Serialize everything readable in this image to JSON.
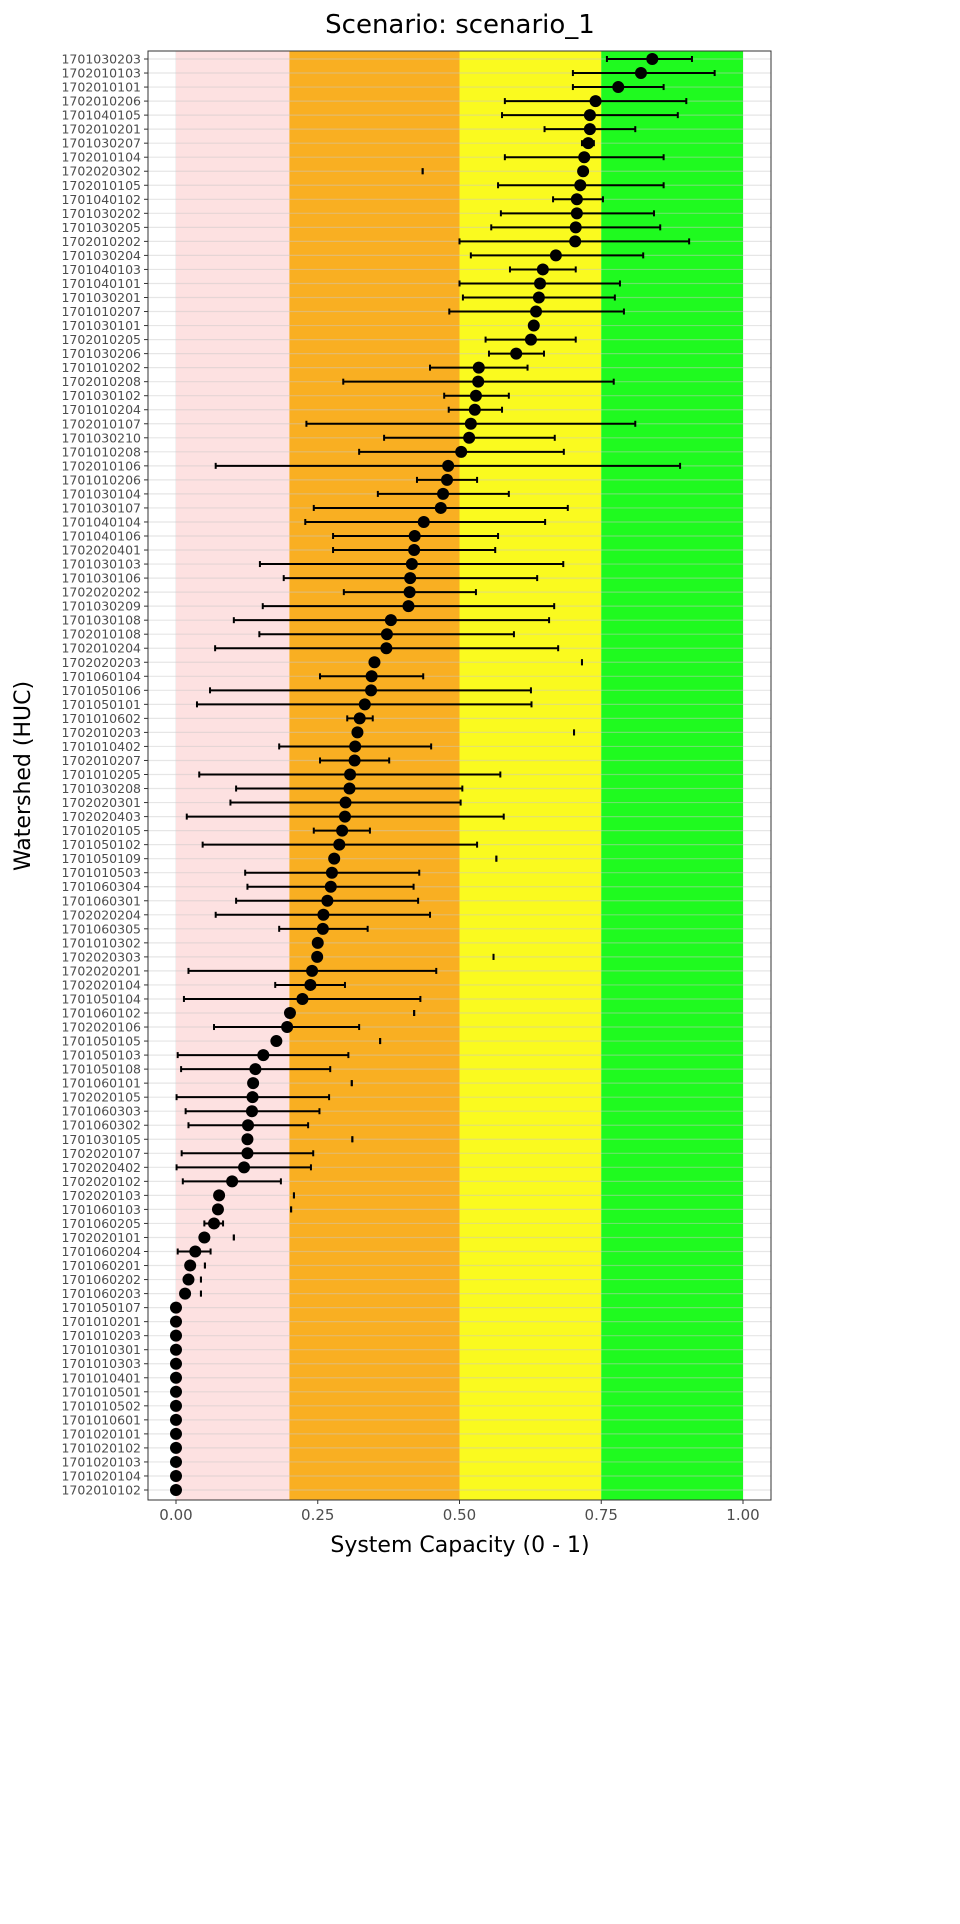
{
  "chart_data": {
    "type": "scatter",
    "subtype": "point-with-errorbars",
    "title": "Scenario: scenario_1",
    "xlabel": "System Capacity (0 - 1)",
    "ylabel": "Watershed (HUC)",
    "xlim": [
      0,
      1
    ],
    "xticks": [
      "0.00",
      "0.25",
      "0.50",
      "0.75",
      "1.00"
    ],
    "grid": true,
    "bands": [
      {
        "from": 0,
        "to": 0.2,
        "color": "#FDE1E1"
      },
      {
        "from": 0.2,
        "to": 0.5,
        "color": "#F9AF22"
      },
      {
        "from": 0.5,
        "to": 0.75,
        "color": "#FAFA1F"
      },
      {
        "from": 0.75,
        "to": 1.0,
        "color": "#1FFA1F"
      }
    ],
    "point_color": "#000000",
    "rows": [
      {
        "huc": "1701030203",
        "value": 0.84,
        "lower": 0.76,
        "upper": 0.91
      },
      {
        "huc": "1702010103",
        "value": 0.82,
        "lower": 0.7,
        "upper": 0.95
      },
      {
        "huc": "1702010101",
        "value": 0.78,
        "lower": 0.7,
        "upper": 0.86
      },
      {
        "huc": "1702010206",
        "value": 0.74,
        "lower": 0.58,
        "upper": 0.9
      },
      {
        "huc": "1701040105",
        "value": 0.73,
        "lower": 0.575,
        "upper": 0.885
      },
      {
        "huc": "1702010201",
        "value": 0.73,
        "lower": 0.65,
        "upper": 0.81
      },
      {
        "huc": "1701030207",
        "value": 0.727,
        "lower": 0.716,
        "upper": 0.737
      },
      {
        "huc": "1702010104",
        "value": 0.72,
        "lower": 0.58,
        "upper": 0.86
      },
      {
        "huc": "1702020302",
        "value": 0.718,
        "lower": 0.435,
        "upper": 0.435
      },
      {
        "huc": "1702010105",
        "value": 0.713,
        "lower": 0.568,
        "upper": 0.86
      },
      {
        "huc": "1701040102",
        "value": 0.707,
        "lower": 0.665,
        "upper": 0.753
      },
      {
        "huc": "1701030202",
        "value": 0.707,
        "lower": 0.573,
        "upper": 0.843
      },
      {
        "huc": "1701030205",
        "value": 0.705,
        "lower": 0.556,
        "upper": 0.854
      },
      {
        "huc": "1702010202",
        "value": 0.704,
        "lower": 0.5,
        "upper": 0.905
      },
      {
        "huc": "1701030204",
        "value": 0.67,
        "lower": 0.52,
        "upper": 0.824
      },
      {
        "huc": "1701040103",
        "value": 0.647,
        "lower": 0.589,
        "upper": 0.705
      },
      {
        "huc": "1701040101",
        "value": 0.642,
        "lower": 0.5,
        "upper": 0.783
      },
      {
        "huc": "1701030201",
        "value": 0.64,
        "lower": 0.506,
        "upper": 0.774
      },
      {
        "huc": "1701010207",
        "value": 0.635,
        "lower": 0.482,
        "upper": 0.79
      },
      {
        "huc": "1701030101",
        "value": 0.631,
        "lower": 0.631,
        "upper": 0.631
      },
      {
        "huc": "1702010205",
        "value": 0.626,
        "lower": 0.546,
        "upper": 0.705
      },
      {
        "huc": "1701030206",
        "value": 0.6,
        "lower": 0.552,
        "upper": 0.649
      },
      {
        "huc": "1701010202",
        "value": 0.534,
        "lower": 0.448,
        "upper": 0.62
      },
      {
        "huc": "1702010208",
        "value": 0.533,
        "lower": 0.295,
        "upper": 0.772
      },
      {
        "huc": "1701030102",
        "value": 0.529,
        "lower": 0.473,
        "upper": 0.587
      },
      {
        "huc": "1701010204",
        "value": 0.527,
        "lower": 0.481,
        "upper": 0.575
      },
      {
        "huc": "1702010107",
        "value": 0.52,
        "lower": 0.23,
        "upper": 0.81
      },
      {
        "huc": "1701030210",
        "value": 0.517,
        "lower": 0.367,
        "upper": 0.668
      },
      {
        "huc": "1701010208",
        "value": 0.503,
        "lower": 0.323,
        "upper": 0.684
      },
      {
        "huc": "1702010106",
        "value": 0.48,
        "lower": 0.07,
        "upper": 0.889
      },
      {
        "huc": "1701010206",
        "value": 0.478,
        "lower": 0.425,
        "upper": 0.531
      },
      {
        "huc": "1701030104",
        "value": 0.471,
        "lower": 0.356,
        "upper": 0.587
      },
      {
        "huc": "1701030107",
        "value": 0.467,
        "lower": 0.243,
        "upper": 0.691
      },
      {
        "huc": "1701040104",
        "value": 0.437,
        "lower": 0.228,
        "upper": 0.651
      },
      {
        "huc": "1701040106",
        "value": 0.421,
        "lower": 0.277,
        "upper": 0.568
      },
      {
        "huc": "1702020401",
        "value": 0.42,
        "lower": 0.277,
        "upper": 0.563
      },
      {
        "huc": "1701030103",
        "value": 0.416,
        "lower": 0.148,
        "upper": 0.683
      },
      {
        "huc": "1701030106",
        "value": 0.413,
        "lower": 0.19,
        "upper": 0.637
      },
      {
        "huc": "1702020202",
        "value": 0.412,
        "lower": 0.296,
        "upper": 0.529
      },
      {
        "huc": "1701030209",
        "value": 0.41,
        "lower": 0.153,
        "upper": 0.667
      },
      {
        "huc": "1701030108",
        "value": 0.379,
        "lower": 0.102,
        "upper": 0.658
      },
      {
        "huc": "1702010108",
        "value": 0.372,
        "lower": 0.147,
        "upper": 0.596
      },
      {
        "huc": "1702010204",
        "value": 0.371,
        "lower": 0.069,
        "upper": 0.674
      },
      {
        "huc": "1702020203",
        "value": 0.35,
        "lower": 0.716,
        "upper": 0.716
      },
      {
        "huc": "1701060104",
        "value": 0.345,
        "lower": 0.254,
        "upper": 0.436
      },
      {
        "huc": "1701050106",
        "value": 0.344,
        "lower": 0.06,
        "upper": 0.626
      },
      {
        "huc": "1701050101",
        "value": 0.333,
        "lower": 0.037,
        "upper": 0.627
      },
      {
        "huc": "1701010602",
        "value": 0.324,
        "lower": 0.302,
        "upper": 0.347
      },
      {
        "huc": "1702010203",
        "value": 0.32,
        "lower": 0.702,
        "upper": 0.702
      },
      {
        "huc": "1701010402",
        "value": 0.316,
        "lower": 0.182,
        "upper": 0.45
      },
      {
        "huc": "1702010207",
        "value": 0.315,
        "lower": 0.254,
        "upper": 0.376
      },
      {
        "huc": "1701010205",
        "value": 0.307,
        "lower": 0.041,
        "upper": 0.572
      },
      {
        "huc": "1701030208",
        "value": 0.306,
        "lower": 0.106,
        "upper": 0.505
      },
      {
        "huc": "1702020301",
        "value": 0.299,
        "lower": 0.096,
        "upper": 0.502
      },
      {
        "huc": "1702020403",
        "value": 0.298,
        "lower": 0.019,
        "upper": 0.578
      },
      {
        "huc": "1701020105",
        "value": 0.293,
        "lower": 0.243,
        "upper": 0.342
      },
      {
        "huc": "1701050102",
        "value": 0.288,
        "lower": 0.047,
        "upper": 0.531
      },
      {
        "huc": "1701050109",
        "value": 0.279,
        "lower": 0.565,
        "upper": 0.565
      },
      {
        "huc": "1701010503",
        "value": 0.275,
        "lower": 0.122,
        "upper": 0.429
      },
      {
        "huc": "1701060304",
        "value": 0.273,
        "lower": 0.126,
        "upper": 0.419
      },
      {
        "huc": "1701060301",
        "value": 0.267,
        "lower": 0.106,
        "upper": 0.427
      },
      {
        "huc": "1702020204",
        "value": 0.26,
        "lower": 0.07,
        "upper": 0.448
      },
      {
        "huc": "1701060305",
        "value": 0.259,
        "lower": 0.182,
        "upper": 0.338
      },
      {
        "huc": "1701010302",
        "value": 0.25,
        "lower": 0.25,
        "upper": 0.25
      },
      {
        "huc": "1702020303",
        "value": 0.249,
        "lower": 0.56,
        "upper": 0.56
      },
      {
        "huc": "1702020201",
        "value": 0.24,
        "lower": 0.022,
        "upper": 0.459
      },
      {
        "huc": "1702020104",
        "value": 0.237,
        "lower": 0.175,
        "upper": 0.298
      },
      {
        "huc": "1701050104",
        "value": 0.223,
        "lower": 0.014,
        "upper": 0.431
      },
      {
        "huc": "1701060102",
        "value": 0.201,
        "lower": 0.42,
        "upper": 0.42
      },
      {
        "huc": "1702020106",
        "value": 0.196,
        "lower": 0.067,
        "upper": 0.323
      },
      {
        "huc": "1701050105",
        "value": 0.177,
        "lower": 0.36,
        "upper": 0.36
      },
      {
        "huc": "1701050103",
        "value": 0.154,
        "lower": 0.003,
        "upper": 0.304
      },
      {
        "huc": "1701050108",
        "value": 0.14,
        "lower": 0.009,
        "upper": 0.272
      },
      {
        "huc": "1701060101",
        "value": 0.136,
        "lower": 0.31,
        "upper": 0.31
      },
      {
        "huc": "1702020105",
        "value": 0.135,
        "lower": 0.001,
        "upper": 0.27
      },
      {
        "huc": "1701060303",
        "value": 0.134,
        "lower": 0.017,
        "upper": 0.253
      },
      {
        "huc": "1701060302",
        "value": 0.127,
        "lower": 0.022,
        "upper": 0.233
      },
      {
        "huc": "1701030105",
        "value": 0.126,
        "lower": 0.311,
        "upper": 0.311
      },
      {
        "huc": "1702020107",
        "value": 0.126,
        "lower": 0.01,
        "upper": 0.242
      },
      {
        "huc": "1702020402",
        "value": 0.12,
        "lower": 0.001,
        "upper": 0.238
      },
      {
        "huc": "1702020102",
        "value": 0.099,
        "lower": 0.012,
        "upper": 0.185
      },
      {
        "huc": "1702020103",
        "value": 0.076,
        "lower": 0.208,
        "upper": 0.208
      },
      {
        "huc": "1701060103",
        "value": 0.074,
        "lower": 0.203,
        "upper": 0.203
      },
      {
        "huc": "1701060205",
        "value": 0.067,
        "lower": 0.05,
        "upper": 0.083
      },
      {
        "huc": "1702020101",
        "value": 0.05,
        "lower": 0.102,
        "upper": 0.102
      },
      {
        "huc": "1701060204",
        "value": 0.034,
        "lower": 0.003,
        "upper": 0.061
      },
      {
        "huc": "1701060201",
        "value": 0.025,
        "lower": 0.051,
        "upper": 0.051
      },
      {
        "huc": "1701060202",
        "value": 0.022,
        "lower": 0.044,
        "upper": 0.044
      },
      {
        "huc": "1701060203",
        "value": 0.016,
        "lower": 0.044,
        "upper": 0.044
      },
      {
        "huc": "1701050107",
        "value": 0,
        "lower": 0,
        "upper": 0
      },
      {
        "huc": "1701010201",
        "value": 0,
        "lower": 0,
        "upper": 0
      },
      {
        "huc": "1701010203",
        "value": 0,
        "lower": 0,
        "upper": 0
      },
      {
        "huc": "1701010301",
        "value": 0,
        "lower": 0,
        "upper": 0
      },
      {
        "huc": "1701010303",
        "value": 0,
        "lower": 0,
        "upper": 0
      },
      {
        "huc": "1701010401",
        "value": 0,
        "lower": 0,
        "upper": 0
      },
      {
        "huc": "1701010501",
        "value": 0,
        "lower": 0,
        "upper": 0
      },
      {
        "huc": "1701010502",
        "value": 0,
        "lower": 0,
        "upper": 0
      },
      {
        "huc": "1701010601",
        "value": 0,
        "lower": 0,
        "upper": 0
      },
      {
        "huc": "1701020101",
        "value": 0,
        "lower": 0,
        "upper": 0
      },
      {
        "huc": "1701020102",
        "value": 0,
        "lower": 0,
        "upper": 0
      },
      {
        "huc": "1701020103",
        "value": 0,
        "lower": 0,
        "upper": 0
      },
      {
        "huc": "1701020104",
        "value": 0,
        "lower": 0,
        "upper": 0
      },
      {
        "huc": "1702010102",
        "value": 0,
        "lower": 0,
        "upper": 0
      }
    ]
  }
}
